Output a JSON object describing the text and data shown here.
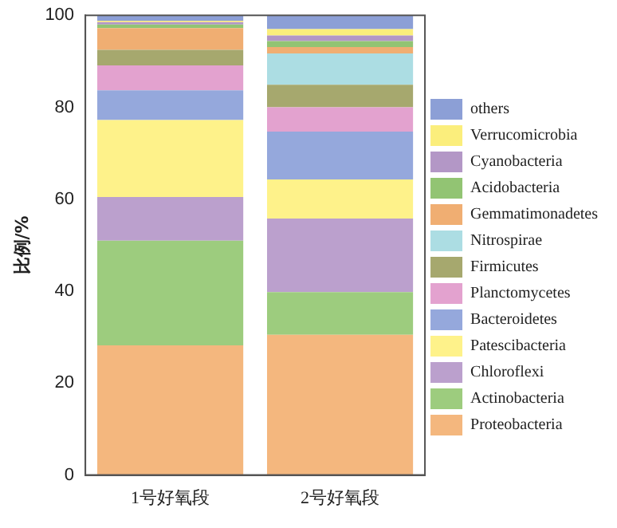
{
  "chart_data": {
    "type": "bar",
    "stacked": true,
    "ylabel": "比例/%",
    "categories": [
      "1号好氧段",
      "2号好氧段"
    ],
    "ylim": [
      0,
      100
    ],
    "yticks": [
      0,
      20,
      40,
      60,
      80,
      100
    ],
    "grid": false,
    "legend": "right",
    "series": [
      {
        "name": "Proteobacteria",
        "color": "#f4b77e",
        "values": [
          28.2,
          30.5
        ]
      },
      {
        "name": "Actinobacteria",
        "color": "#9dcc7e",
        "values": [
          22.8,
          9.3
        ]
      },
      {
        "name": "Chloroflexi",
        "color": "#bba0cd",
        "values": [
          9.5,
          16.0
        ]
      },
      {
        "name": "Patescibacteria",
        "color": "#fef28a",
        "values": [
          16.7,
          8.5
        ]
      },
      {
        "name": "Bacteroidetes",
        "color": "#95a8dc",
        "values": [
          6.5,
          10.4
        ]
      },
      {
        "name": "Planctomycetes",
        "color": "#e3a2cf",
        "values": [
          5.4,
          5.3
        ]
      },
      {
        "name": "Firmicutes",
        "color": "#a6a86e",
        "values": [
          3.4,
          4.9
        ]
      },
      {
        "name": "Nitrospirae",
        "color": "#acdde3",
        "values": [
          0,
          6.8
        ]
      },
      {
        "name": "Gemmatimonadetes",
        "color": "#f0ae72",
        "values": [
          4.7,
          1.4
        ]
      },
      {
        "name": "Acidobacteria",
        "color": "#92c473",
        "values": [
          0.8,
          1.3
        ]
      },
      {
        "name": "Cyanobacteria",
        "color": "#b397c6",
        "values": [
          0.5,
          1.2
        ]
      },
      {
        "name": "Verrucomicrobia",
        "color": "#fbee7c",
        "values": [
          0.3,
          1.4
        ]
      },
      {
        "name": "others",
        "color": "#8c9fd6",
        "values": [
          1.2,
          3.0
        ]
      }
    ]
  }
}
